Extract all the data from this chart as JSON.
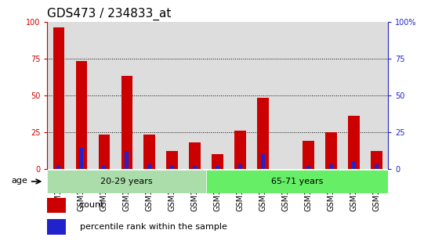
{
  "title": "GDS473 / 234833_at",
  "samples": [
    "GSM10354",
    "GSM10355",
    "GSM10356",
    "GSM10359",
    "GSM10360",
    "GSM10361",
    "GSM10362",
    "GSM10363",
    "GSM10364",
    "GSM10365",
    "GSM10366",
    "GSM10367",
    "GSM10368",
    "GSM10369",
    "GSM10370"
  ],
  "count_values": [
    96,
    73,
    23,
    63,
    23,
    12,
    18,
    10,
    26,
    48,
    0,
    19,
    25,
    36,
    12
  ],
  "percentile_values": [
    2,
    14,
    2,
    12,
    3,
    2,
    2,
    2,
    3,
    10,
    0,
    2,
    3,
    5,
    3
  ],
  "group1_count": 7,
  "group2_count": 8,
  "group1_label": "20-29 years",
  "group2_label": "65-71 years",
  "age_label": "age",
  "ylim": [
    0,
    100
  ],
  "yticks": [
    0,
    25,
    50,
    75,
    100
  ],
  "count_color": "#cc0000",
  "percentile_color": "#2222cc",
  "group1_bg": "#aaddaa",
  "group2_bg": "#66ee66",
  "col_bg_color": "#dddddd",
  "plot_bg": "#ffffff",
  "legend_count": "count",
  "legend_percentile": "percentile rank within the sample",
  "title_fontsize": 11,
  "tick_fontsize": 7,
  "label_fontsize": 8,
  "bar_width": 0.5,
  "pct_bar_width": 0.18
}
